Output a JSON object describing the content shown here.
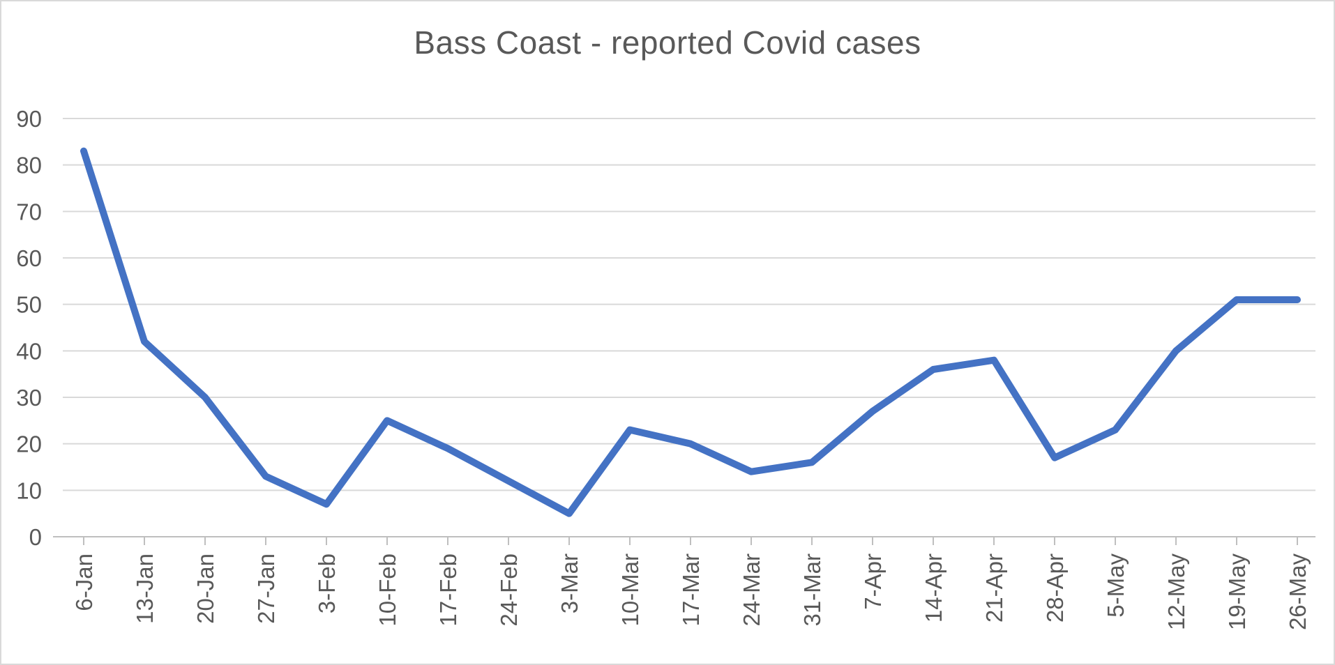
{
  "title": "Bass Coast - reported Covid cases",
  "colors": {
    "line": "#4472C4",
    "gridline": "#D9D9D9",
    "axis": "#BFBFBF",
    "text": "#595959",
    "border": "#D9D9D9",
    "background": "#FFFFFF"
  },
  "chart_data": {
    "type": "line",
    "title": "Bass Coast - reported Covid cases",
    "categories": [
      "6-Jan",
      "13-Jan",
      "20-Jan",
      "27-Jan",
      "3-Feb",
      "10-Feb",
      "17-Feb",
      "24-Feb",
      "3-Mar",
      "10-Mar",
      "17-Mar",
      "24-Mar",
      "31-Mar",
      "7-Apr",
      "14-Apr",
      "21-Apr",
      "28-Apr",
      "5-May",
      "12-May",
      "19-May",
      "26-May"
    ],
    "values": [
      83,
      42,
      30,
      13,
      7,
      25,
      19,
      12,
      5,
      23,
      20,
      14,
      16,
      27,
      36,
      38,
      17,
      23,
      40,
      51,
      51
    ],
    "xlabel": "",
    "ylabel": "",
    "ylim": [
      0,
      90
    ],
    "y_ticks": [
      0,
      10,
      20,
      30,
      40,
      50,
      60,
      70,
      80,
      90
    ],
    "grid": true,
    "legend_position": "none",
    "x_tick_label_rotation_deg": -90
  }
}
